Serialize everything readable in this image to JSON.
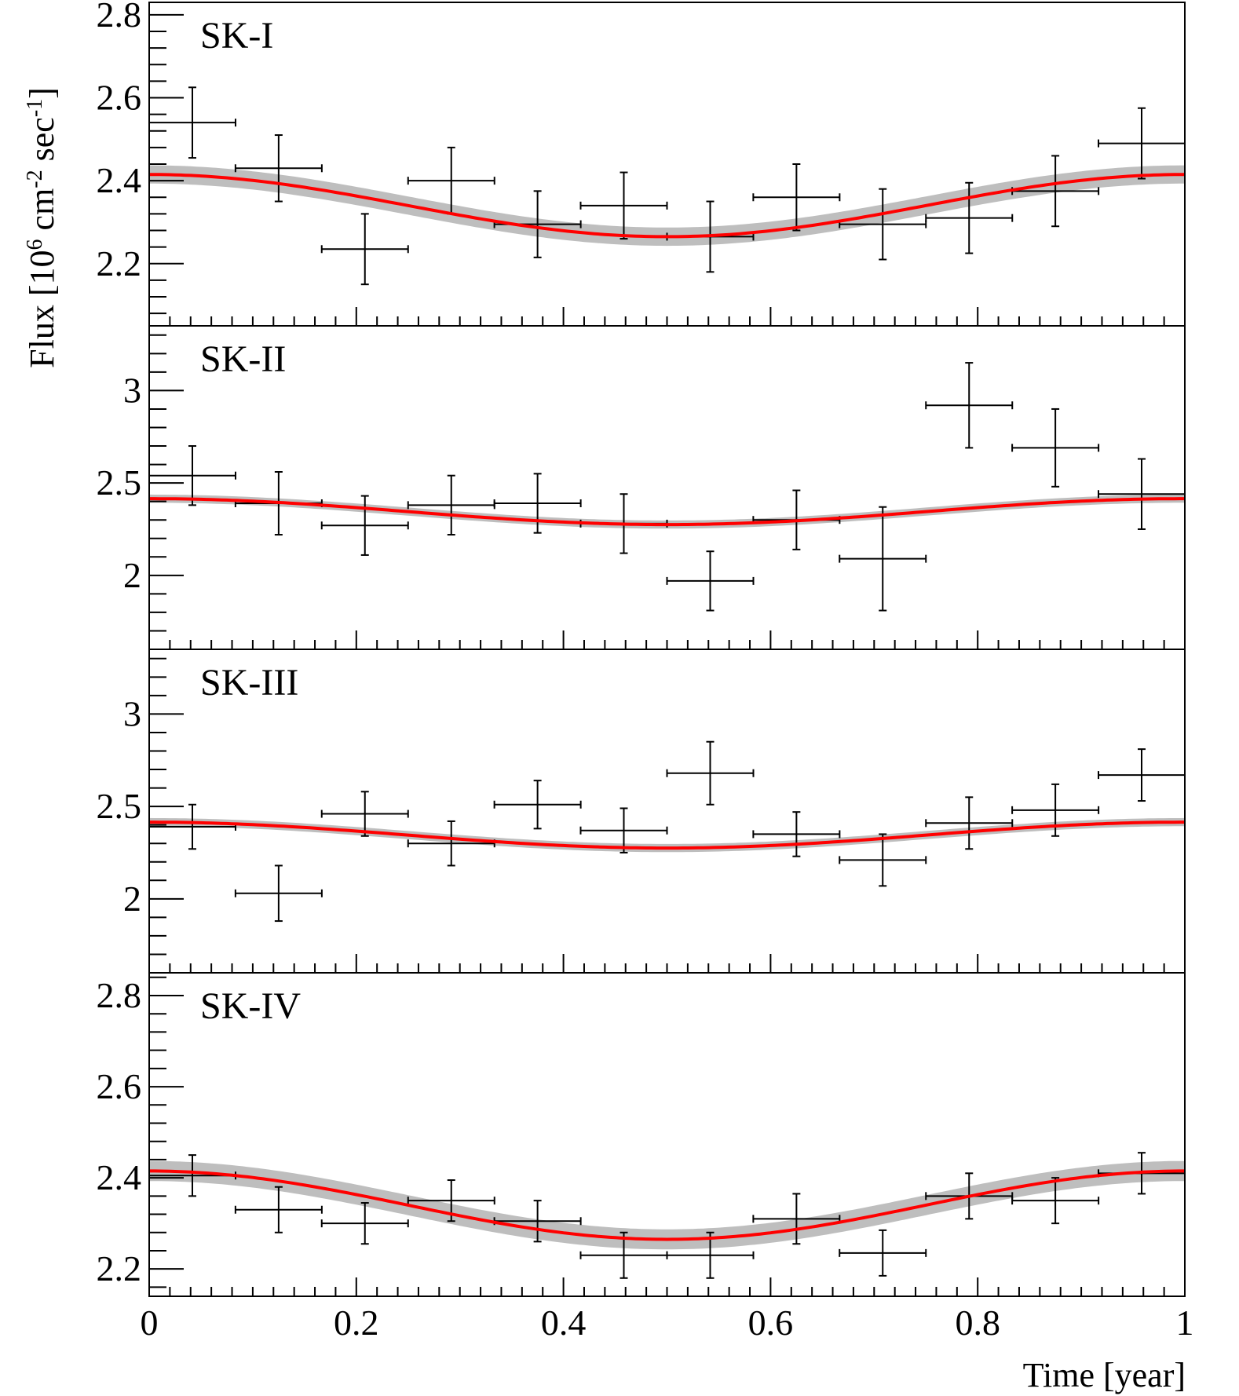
{
  "figure": {
    "ylabel": {
      "main": "Flux [10",
      "exp1": "6",
      "mid": " cm",
      "exp2": "-2",
      "mid2": " sec",
      "exp3": "-1",
      "end": "]"
    },
    "xlabel": "Time [year]",
    "colors": {
      "fit": "#ff0000",
      "band": "#a8a8a8",
      "data": "#000000",
      "axis": "#000000"
    }
  },
  "chart_data": [
    {
      "type": "scatter",
      "title": "SK-I",
      "xlabel": "Time [year]",
      "ylabel": "Flux [10^6 cm^-2 sec^-1]",
      "xlim": [
        0,
        1
      ],
      "ylim": [
        2.05,
        2.83
      ],
      "yticks": [
        2.2,
        2.4,
        2.6,
        2.8
      ],
      "ytick_labels": [
        "2.2",
        "2.4",
        "2.6",
        "2.8"
      ],
      "fit": {
        "mean": 2.34,
        "amplitude": 0.075,
        "band_halfwidth": 0.022
      },
      "series": [
        {
          "name": "SK-I data",
          "x": [
            0.0417,
            0.125,
            0.2083,
            0.2917,
            0.375,
            0.4583,
            0.5417,
            0.625,
            0.7083,
            0.7917,
            0.875,
            0.9583
          ],
          "y": [
            2.54,
            2.43,
            2.235,
            2.4,
            2.295,
            2.34,
            2.265,
            2.36,
            2.295,
            2.31,
            2.375,
            2.49
          ],
          "yerr": [
            0.085,
            0.08,
            0.085,
            0.08,
            0.08,
            0.08,
            0.085,
            0.08,
            0.085,
            0.085,
            0.085,
            0.085
          ],
          "xerr": 0.0417
        }
      ]
    },
    {
      "type": "scatter",
      "title": "SK-II",
      "xlabel": "Time [year]",
      "ylabel": "Flux [10^6 cm^-2 sec^-1]",
      "xlim": [
        0,
        1
      ],
      "ylim": [
        1.6,
        3.35
      ],
      "yticks": [
        2,
        2.5,
        3
      ],
      "ytick_labels": [
        "2",
        "2.5",
        "3"
      ],
      "fit": {
        "mean": 2.345,
        "amplitude": 0.07,
        "band_halfwidth": 0.022
      },
      "series": [
        {
          "name": "SK-II data",
          "x": [
            0.0417,
            0.125,
            0.2083,
            0.2917,
            0.375,
            0.4583,
            0.5417,
            0.625,
            0.7083,
            0.7917,
            0.875,
            0.9583
          ],
          "y": [
            2.54,
            2.39,
            2.27,
            2.38,
            2.39,
            2.28,
            1.97,
            2.3,
            2.09,
            2.92,
            2.69,
            2.44
          ],
          "yerr": [
            0.16,
            0.17,
            0.16,
            0.16,
            0.16,
            0.16,
            0.16,
            0.16,
            0.28,
            0.23,
            0.21,
            0.19
          ],
          "xerr": 0.0417
        }
      ]
    },
    {
      "type": "scatter",
      "title": "SK-III",
      "xlabel": "Time [year]",
      "ylabel": "Flux [10^6 cm^-2 sec^-1]",
      "xlim": [
        0,
        1
      ],
      "ylim": [
        1.6,
        3.35
      ],
      "yticks": [
        2,
        2.5,
        3
      ],
      "ytick_labels": [
        "2",
        "2.5",
        "3"
      ],
      "fit": {
        "mean": 2.345,
        "amplitude": 0.07,
        "band_halfwidth": 0.022
      },
      "series": [
        {
          "name": "SK-III data",
          "x": [
            0.0417,
            0.125,
            0.2083,
            0.2917,
            0.375,
            0.4583,
            0.5417,
            0.625,
            0.7083,
            0.7917,
            0.875,
            0.9583
          ],
          "y": [
            2.39,
            2.03,
            2.46,
            2.3,
            2.51,
            2.37,
            2.68,
            2.35,
            2.21,
            2.41,
            2.48,
            2.67
          ],
          "yerr": [
            0.12,
            0.15,
            0.12,
            0.12,
            0.13,
            0.12,
            0.17,
            0.12,
            0.14,
            0.14,
            0.14,
            0.14
          ],
          "xerr": 0.0417
        }
      ]
    },
    {
      "type": "scatter",
      "title": "SK-IV",
      "xlabel": "Time [year]",
      "ylabel": "Flux [10^6 cm^-2 sec^-1]",
      "xlim": [
        0,
        1
      ],
      "ylim": [
        2.14,
        2.85
      ],
      "yticks": [
        2.2,
        2.4,
        2.6,
        2.8
      ],
      "ytick_labels": [
        "2.2",
        "2.4",
        "2.6",
        "2.8"
      ],
      "fit": {
        "mean": 2.34,
        "amplitude": 0.075,
        "band_halfwidth": 0.022
      },
      "series": [
        {
          "name": "SK-IV data",
          "x": [
            0.0417,
            0.125,
            0.2083,
            0.2917,
            0.375,
            0.4583,
            0.5417,
            0.625,
            0.7083,
            0.7917,
            0.875,
            0.9583
          ],
          "y": [
            2.405,
            2.33,
            2.3,
            2.35,
            2.305,
            2.23,
            2.23,
            2.31,
            2.235,
            2.36,
            2.35,
            2.41
          ],
          "yerr": [
            0.045,
            0.05,
            0.045,
            0.045,
            0.045,
            0.05,
            0.05,
            0.055,
            0.05,
            0.05,
            0.05,
            0.045
          ],
          "xerr": 0.0417
        }
      ]
    }
  ],
  "xaxis": {
    "ticks": [
      0,
      0.2,
      0.4,
      0.6,
      0.8,
      1
    ],
    "tick_labels": [
      "0",
      "0.2",
      "0.4",
      "0.6",
      "0.8",
      "1"
    ]
  }
}
